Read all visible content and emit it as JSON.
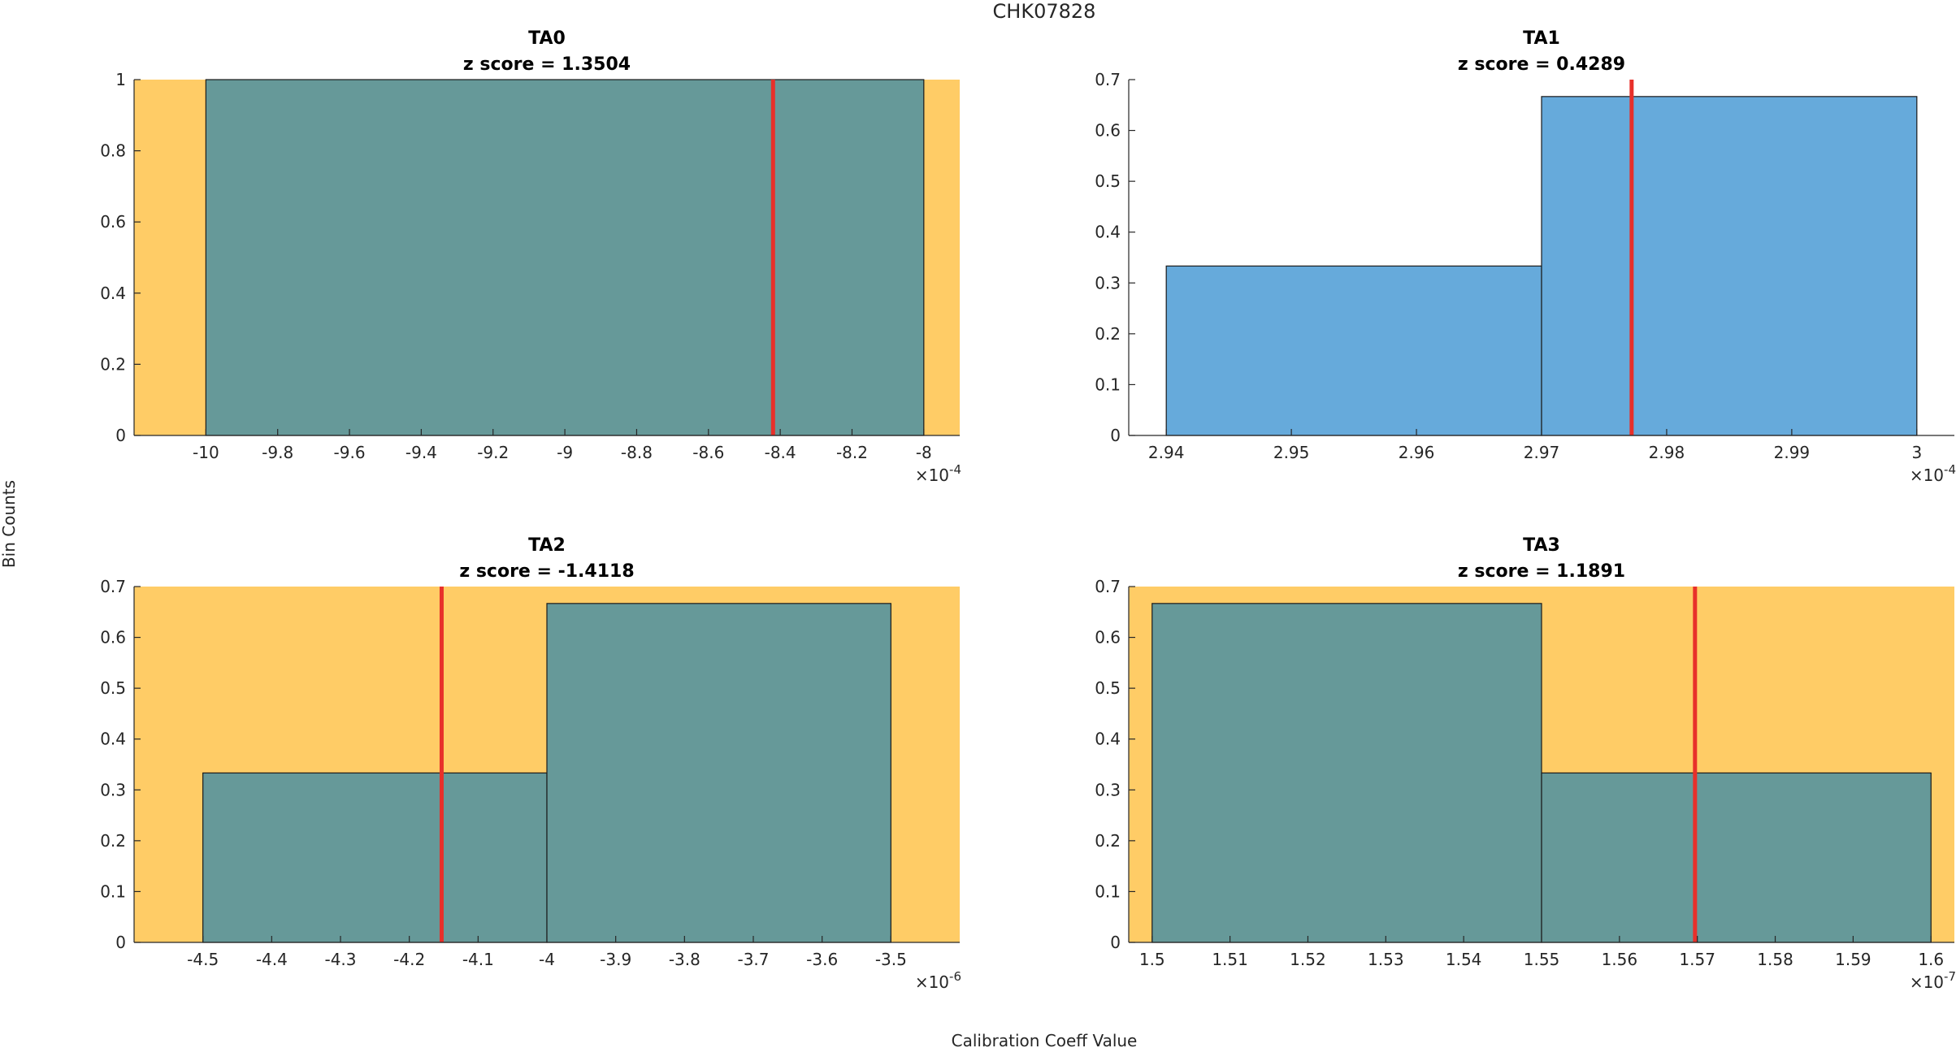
{
  "figure": {
    "title": "CHK07828",
    "xlabel": "Calibration Coeff Value",
    "ylabel": "Bin Counts"
  },
  "colors": {
    "highlight_band": "#FFCC66",
    "bar_on_band": "#669999",
    "bar_normal": "#66AADB",
    "bar_edge": "#1a1a1a",
    "marker_line": "#E8302A",
    "axis": "#262626"
  },
  "chart_data": [
    {
      "type": "bar",
      "id": "TA0",
      "title": "TA0",
      "subtitle": "z score = 1.3504",
      "exponent_label": "×10⁻⁴",
      "exponent_base": "×10",
      "exponent_power": "-4",
      "xlim": [
        -10.2,
        -7.9
      ],
      "ylim": [
        0,
        1
      ],
      "xticks": [
        -10,
        -9.8,
        -9.6,
        -9.4,
        -9.2,
        -9,
        -8.8,
        -8.6,
        -8.4,
        -8.2,
        -8
      ],
      "xtick_labels": [
        "-10",
        "-9.8",
        "-9.6",
        "-9.4",
        "-9.2",
        "-9",
        "-8.8",
        "-8.6",
        "-8.4",
        "-8.2",
        "-8"
      ],
      "yticks": [
        0,
        0.2,
        0.4,
        0.6,
        0.8,
        1
      ],
      "ytick_labels": [
        "0",
        "0.2",
        "0.4",
        "0.6",
        "0.8",
        "1"
      ],
      "bin_edges": [
        -10,
        -8
      ],
      "values": [
        1
      ],
      "marker_x": -8.42,
      "band": [
        -10.2,
        -7.9
      ]
    },
    {
      "type": "bar",
      "id": "TA1",
      "title": "TA1",
      "subtitle": "z score = 0.4289",
      "exponent_label": "×10⁻⁴",
      "exponent_base": "×10",
      "exponent_power": "-4",
      "xlim": [
        2.937,
        3.003
      ],
      "ylim": [
        0,
        0.7
      ],
      "xticks": [
        2.94,
        2.95,
        2.96,
        2.97,
        2.98,
        2.99,
        3
      ],
      "xtick_labels": [
        "2.94",
        "2.95",
        "2.96",
        "2.97",
        "2.98",
        "2.99",
        "3"
      ],
      "yticks": [
        0,
        0.1,
        0.2,
        0.3,
        0.4,
        0.5,
        0.6,
        0.7
      ],
      "ytick_labels": [
        "0",
        "0.1",
        "0.2",
        "0.3",
        "0.4",
        "0.5",
        "0.6",
        "0.7"
      ],
      "bin_edges": [
        2.94,
        2.97,
        3.0
      ],
      "values": [
        0.3333,
        0.6667
      ],
      "marker_x": 2.9772,
      "band": null
    },
    {
      "type": "bar",
      "id": "TA2",
      "title": "TA2",
      "subtitle": "z score = -1.4118",
      "exponent_label": "×10⁻⁶",
      "exponent_base": "×10",
      "exponent_power": "-6",
      "xlim": [
        -4.6,
        -3.4
      ],
      "ylim": [
        0,
        0.7
      ],
      "xticks": [
        -4.5,
        -4.4,
        -4.3,
        -4.2,
        -4.1,
        -4,
        -3.9,
        -3.8,
        -3.7,
        -3.6,
        -3.5
      ],
      "xtick_labels": [
        "-4.5",
        "-4.4",
        "-4.3",
        "-4.2",
        "-4.1",
        "-4",
        "-3.9",
        "-3.8",
        "-3.7",
        "-3.6",
        "-3.5"
      ],
      "yticks": [
        0,
        0.1,
        0.2,
        0.3,
        0.4,
        0.5,
        0.6,
        0.7
      ],
      "ytick_labels": [
        "0",
        "0.1",
        "0.2",
        "0.3",
        "0.4",
        "0.5",
        "0.6",
        "0.7"
      ],
      "bin_edges": [
        -4.5,
        -4.0,
        -3.5
      ],
      "values": [
        0.3333,
        0.6667
      ],
      "marker_x": -4.153,
      "band": [
        -4.6,
        -3.4
      ]
    },
    {
      "type": "bar",
      "id": "TA3",
      "title": "TA3",
      "subtitle": "z score = 1.1891",
      "exponent_label": "×10⁻⁷",
      "exponent_base": "×10",
      "exponent_power": "-7",
      "xlim": [
        1.497,
        1.603
      ],
      "ylim": [
        0,
        0.7
      ],
      "xticks": [
        1.5,
        1.51,
        1.52,
        1.53,
        1.54,
        1.55,
        1.56,
        1.57,
        1.58,
        1.59,
        1.6
      ],
      "xtick_labels": [
        "1.5",
        "1.51",
        "1.52",
        "1.53",
        "1.54",
        "1.55",
        "1.56",
        "1.57",
        "1.58",
        "1.59",
        "1.6"
      ],
      "yticks": [
        0,
        0.1,
        0.2,
        0.3,
        0.4,
        0.5,
        0.6,
        0.7
      ],
      "ytick_labels": [
        "0",
        "0.1",
        "0.2",
        "0.3",
        "0.4",
        "0.5",
        "0.6",
        "0.7"
      ],
      "bin_edges": [
        1.5,
        1.55,
        1.6
      ],
      "values": [
        0.6667,
        0.3333
      ],
      "marker_x": 1.5697,
      "band": [
        1.497,
        1.603
      ]
    }
  ]
}
